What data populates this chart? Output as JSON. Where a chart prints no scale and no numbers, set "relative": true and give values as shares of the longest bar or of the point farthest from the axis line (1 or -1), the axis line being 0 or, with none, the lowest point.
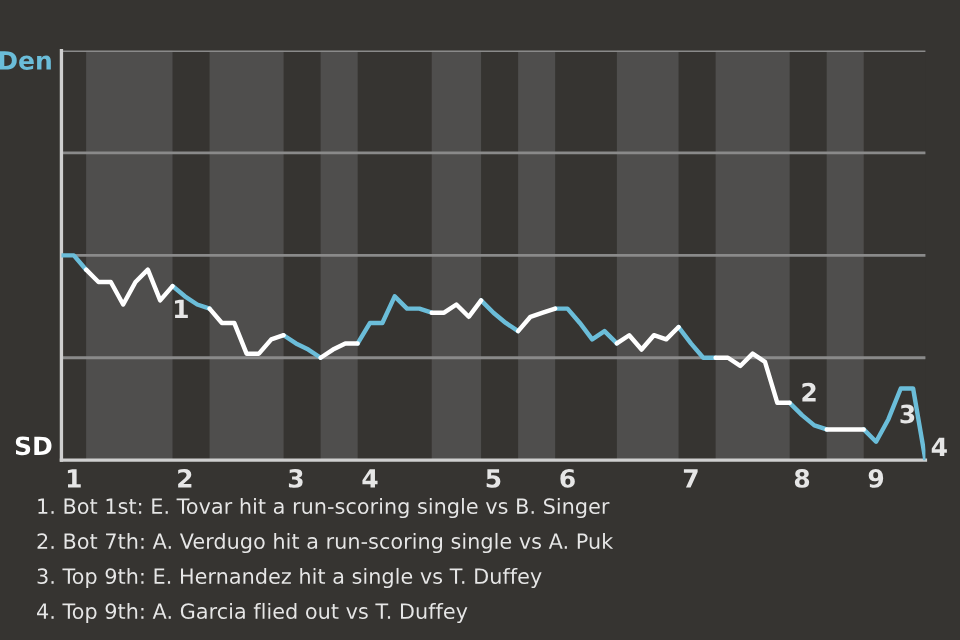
{
  "chart_data": {
    "type": "line",
    "relative": true,
    "categories": [
      null,
      "1",
      null,
      null,
      null,
      null,
      null,
      null,
      null,
      null,
      "2",
      null,
      null,
      null,
      null,
      null,
      null,
      null,
      null,
      "3",
      null,
      null,
      null,
      null,
      null,
      "4",
      null,
      null,
      null,
      null,
      null,
      null,
      null,
      null,
      null,
      "5",
      null,
      null,
      null,
      null,
      null,
      "6",
      null,
      null,
      null,
      null,
      null,
      null,
      null,
      null,
      null,
      "7",
      null,
      null,
      null,
      null,
      null,
      null,
      null,
      null,
      "8",
      null,
      null,
      null,
      null,
      null,
      "9",
      null,
      null,
      null,
      null
    ],
    "series": [
      {
        "color": "#6bbdd9",
        "values": [
          1,
          1,
          0.93,
          null,
          null,
          null,
          null,
          null,
          null,
          0.85,
          0.8,
          0.76,
          0.74,
          null,
          null,
          null,
          null,
          null,
          0.61,
          0.57,
          0.54,
          0.5,
          null,
          null,
          0.57,
          0.67,
          0.67,
          0.8,
          0.74,
          0.74,
          0.72,
          null,
          null,
          null,
          0.78,
          0.72,
          0.67,
          0.63,
          null,
          null,
          0.74,
          0.74,
          0.67,
          0.59,
          0.63,
          0.57,
          null,
          null,
          null,
          null,
          0.65,
          0.57,
          0.5,
          0.5,
          null,
          null,
          null,
          null,
          null,
          0.28,
          0.22,
          0.17,
          0.15,
          null,
          null,
          0.15,
          0.09,
          0.2,
          0.35,
          0.35,
          0
        ]
      },
      {
        "color": "#ffffff",
        "values": [
          null,
          null,
          0.93,
          0.87,
          0.87,
          0.76,
          0.87,
          0.93,
          0.78,
          0.85,
          null,
          null,
          0.74,
          0.67,
          0.67,
          0.52,
          0.52,
          0.59,
          0.61,
          null,
          null,
          0.5,
          0.54,
          0.57,
          0.57,
          null,
          null,
          null,
          null,
          null,
          0.72,
          0.72,
          0.76,
          0.7,
          0.78,
          null,
          null,
          0.63,
          0.7,
          0.72,
          0.74,
          null,
          null,
          null,
          null,
          0.57,
          0.61,
          0.54,
          0.61,
          0.59,
          0.65,
          null,
          null,
          0.5,
          0.5,
          0.46,
          0.52,
          0.48,
          0.28,
          0.28,
          null,
          null,
          0.15,
          0.15,
          0.15,
          0.15,
          null,
          null,
          null,
          null,
          null
        ]
      }
    ],
    "ref_lines": [
      {
        "axis": "y",
        "value": 0.5,
        "label": null,
        "color": "#8a8a8a"
      },
      {
        "axis": "y",
        "value": 1,
        "label": null,
        "color": "#8a8a8a"
      },
      {
        "axis": "y",
        "value": 1.5,
        "label": null,
        "color": "#8a8a8a"
      },
      {
        "axis": "y",
        "value": 2,
        "label": null,
        "color": "#8a8a8a"
      }
    ],
    "marker": "none",
    "line_style": "solid",
    "annotations": [
      "Den",
      "SD",
      "1",
      "2",
      "3",
      "4",
      "1. Bot 1st: E. Tovar hit a run-scoring single vs B. Singer",
      "2. Bot 7th: A. Verdugo hit a run-scoring single vs A. Puk",
      "3. Top 9th: E. Hernandez hit a single vs T. Duffey",
      "4. Top 9th: A. Garcia flied out vs T. Duffey"
    ]
  }
}
